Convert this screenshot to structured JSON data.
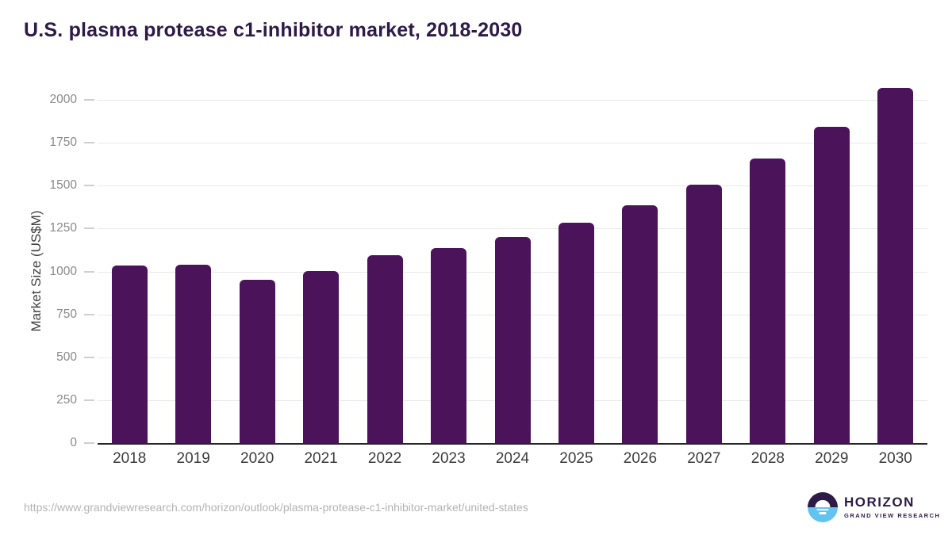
{
  "title": "U.S. plasma protease c1-inhibitor market, 2018-2030",
  "chart_data": {
    "type": "bar",
    "categories": [
      "2018",
      "2019",
      "2020",
      "2021",
      "2022",
      "2023",
      "2024",
      "2025",
      "2026",
      "2027",
      "2028",
      "2029",
      "2030"
    ],
    "values": [
      1035,
      1038,
      953,
      1003,
      1095,
      1136,
      1202,
      1284,
      1384,
      1508,
      1660,
      1845,
      2068
    ],
    "title": "U.S. plasma protease c1-inhibitor market, 2018-2030",
    "xlabel": "",
    "ylabel": "Market Size (US$M)",
    "ylim": [
      0,
      2000
    ],
    "yticks": [
      0,
      250,
      500,
      750,
      1000,
      1250,
      1500,
      1750,
      2000
    ],
    "grid": true,
    "legend": "none",
    "bar_color": "#4a135a"
  },
  "footer": {
    "source_url": "https://www.grandviewresearch.com/horizon/outlook/plasma-protease-c1-inhibitor-market/united-states",
    "logo": {
      "name": "HORIZON",
      "subtitle": "GRAND VIEW RESEARCH"
    }
  },
  "colors": {
    "bar": "#4a135a",
    "title": "#2e1a47",
    "axis_line": "#262626",
    "gridline": "#e9e9e9",
    "tick_label": "#8a8a8a",
    "x_label": "#3c3c3c",
    "y_axis_label": "#404040",
    "url": "#b3b3b3",
    "logo_purple": "#2e1a47",
    "logo_blue": "#62c4ee"
  }
}
